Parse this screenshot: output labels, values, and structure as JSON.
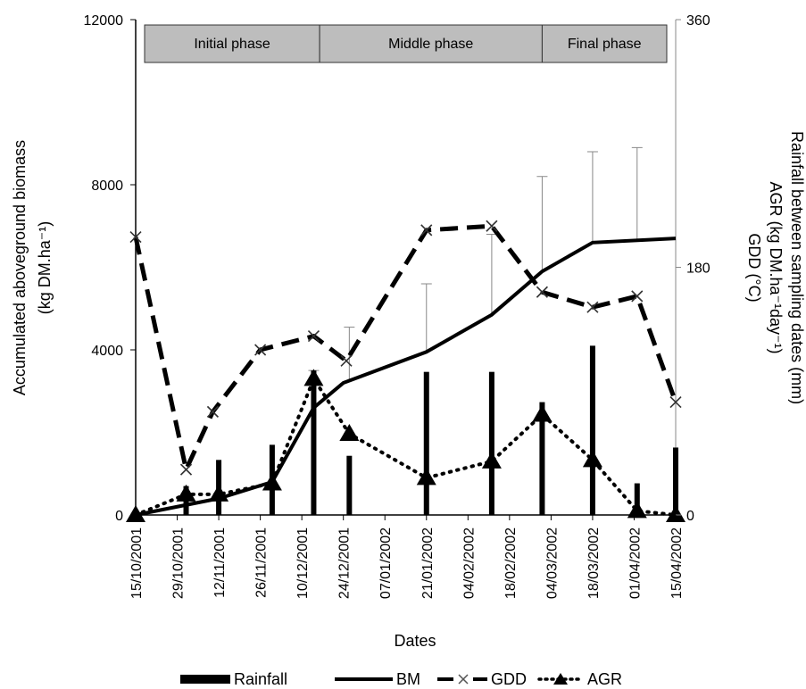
{
  "chart_data": {
    "type": "line",
    "x_label": "Dates",
    "y_left_label": "Accumulated aboveground biomass",
    "y_left_unit": "(kg DM.ha⁻¹)",
    "y_right_label_1": "Rainfall between sampling dates (mm)",
    "y_right_label_2": "AGR (kg DM.ha⁻¹day⁻¹)",
    "y_right_label_3": "GDD (°C)",
    "y_left_ticks": [
      "0",
      "4000",
      "8000",
      "12000"
    ],
    "y_right_ticks": [
      "0",
      "180",
      "360"
    ],
    "y_left_range": [
      0,
      12000
    ],
    "y_right_range": [
      0,
      360
    ],
    "x_ticks": [
      "15/10/2001",
      "29/10/2001",
      "12/11/2001",
      "26/11/2001",
      "10/12/2001",
      "24/12/2001",
      "07/01/2002",
      "21/01/2002",
      "04/02/2002",
      "18/02/2002",
      "04/03/2002",
      "18/03/2002",
      "01/04/2002",
      "15/04/2002"
    ],
    "phases": [
      {
        "label": "Initial  phase",
        "start": "15/10/2001",
        "end": "16/12/2001"
      },
      {
        "label": "Middle phase",
        "start": "16/12/2001",
        "end": "01/03/2002"
      },
      {
        "label": "Final phase",
        "start": "01/03/2002",
        "end": "15/04/2002"
      }
    ],
    "series": [
      {
        "name": "BM",
        "axis": "left",
        "style": "solid",
        "x": [
          "15/10/2001",
          "12/11/2001",
          "30/11/2001",
          "14/12/2001",
          "24/12/2001",
          "21/01/2002",
          "12/02/2002",
          "01/03/2002",
          "18/03/2002",
          "15/04/2002"
        ],
        "y": [
          0,
          400,
          800,
          2600,
          3200,
          3950,
          4850,
          5900,
          6600,
          6700
        ]
      },
      {
        "name": "GDD",
        "axis": "right",
        "style": "dashed",
        "marker": "x",
        "x": [
          "15/10/2001",
          "01/11/2001",
          "10/11/2001",
          "26/11/2001",
          "14/12/2001",
          "25/12/2001",
          "21/01/2002",
          "12/02/2002",
          "01/03/2002",
          "18/03/2002",
          "02/04/2002",
          "15/04/2002"
        ],
        "y": [
          202,
          33,
          75,
          120,
          130,
          112,
          207,
          210,
          162,
          151,
          159,
          82
        ]
      },
      {
        "name": "AGR",
        "axis": "right",
        "style": "dotted",
        "marker": "triangle",
        "x": [
          "15/10/2001",
          "01/11/2001",
          "12/11/2001",
          "30/11/2001",
          "14/12/2001",
          "26/12/2001",
          "21/01/2002",
          "12/02/2002",
          "01/03/2002",
          "18/03/2002",
          "02/04/2002",
          "15/04/2002"
        ],
        "y": [
          0,
          15,
          15,
          23,
          99,
          59,
          27,
          39,
          73,
          40,
          3,
          0
        ]
      },
      {
        "name": "Rainfall",
        "axis": "right",
        "style": "bars",
        "x": [
          "01/11/2001",
          "12/11/2001",
          "30/11/2001",
          "14/12/2001",
          "26/12/2001",
          "21/01/2002",
          "12/02/2002",
          "01/03/2002",
          "18/03/2002",
          "02/04/2002",
          "15/04/2002"
        ],
        "y": [
          21,
          40,
          51,
          105,
          43,
          104,
          104,
          82,
          123,
          23,
          49
        ]
      }
    ],
    "error_bars": [
      {
        "x": "14/12/2001",
        "upper": 3500
      },
      {
        "x": "26/12/2001",
        "upper": 4550
      },
      {
        "x": "21/01/2002",
        "upper": 5600
      },
      {
        "x": "12/02/2002",
        "upper": 6800
      },
      {
        "x": "01/03/2002",
        "upper": 8200
      },
      {
        "x": "18/03/2002",
        "upper": 8800
      },
      {
        "x": "02/04/2002",
        "upper": 8900
      }
    ],
    "legend": [
      "Rainfall",
      "BM",
      "GDD",
      "AGR"
    ],
    "legend_position": "bottom"
  }
}
